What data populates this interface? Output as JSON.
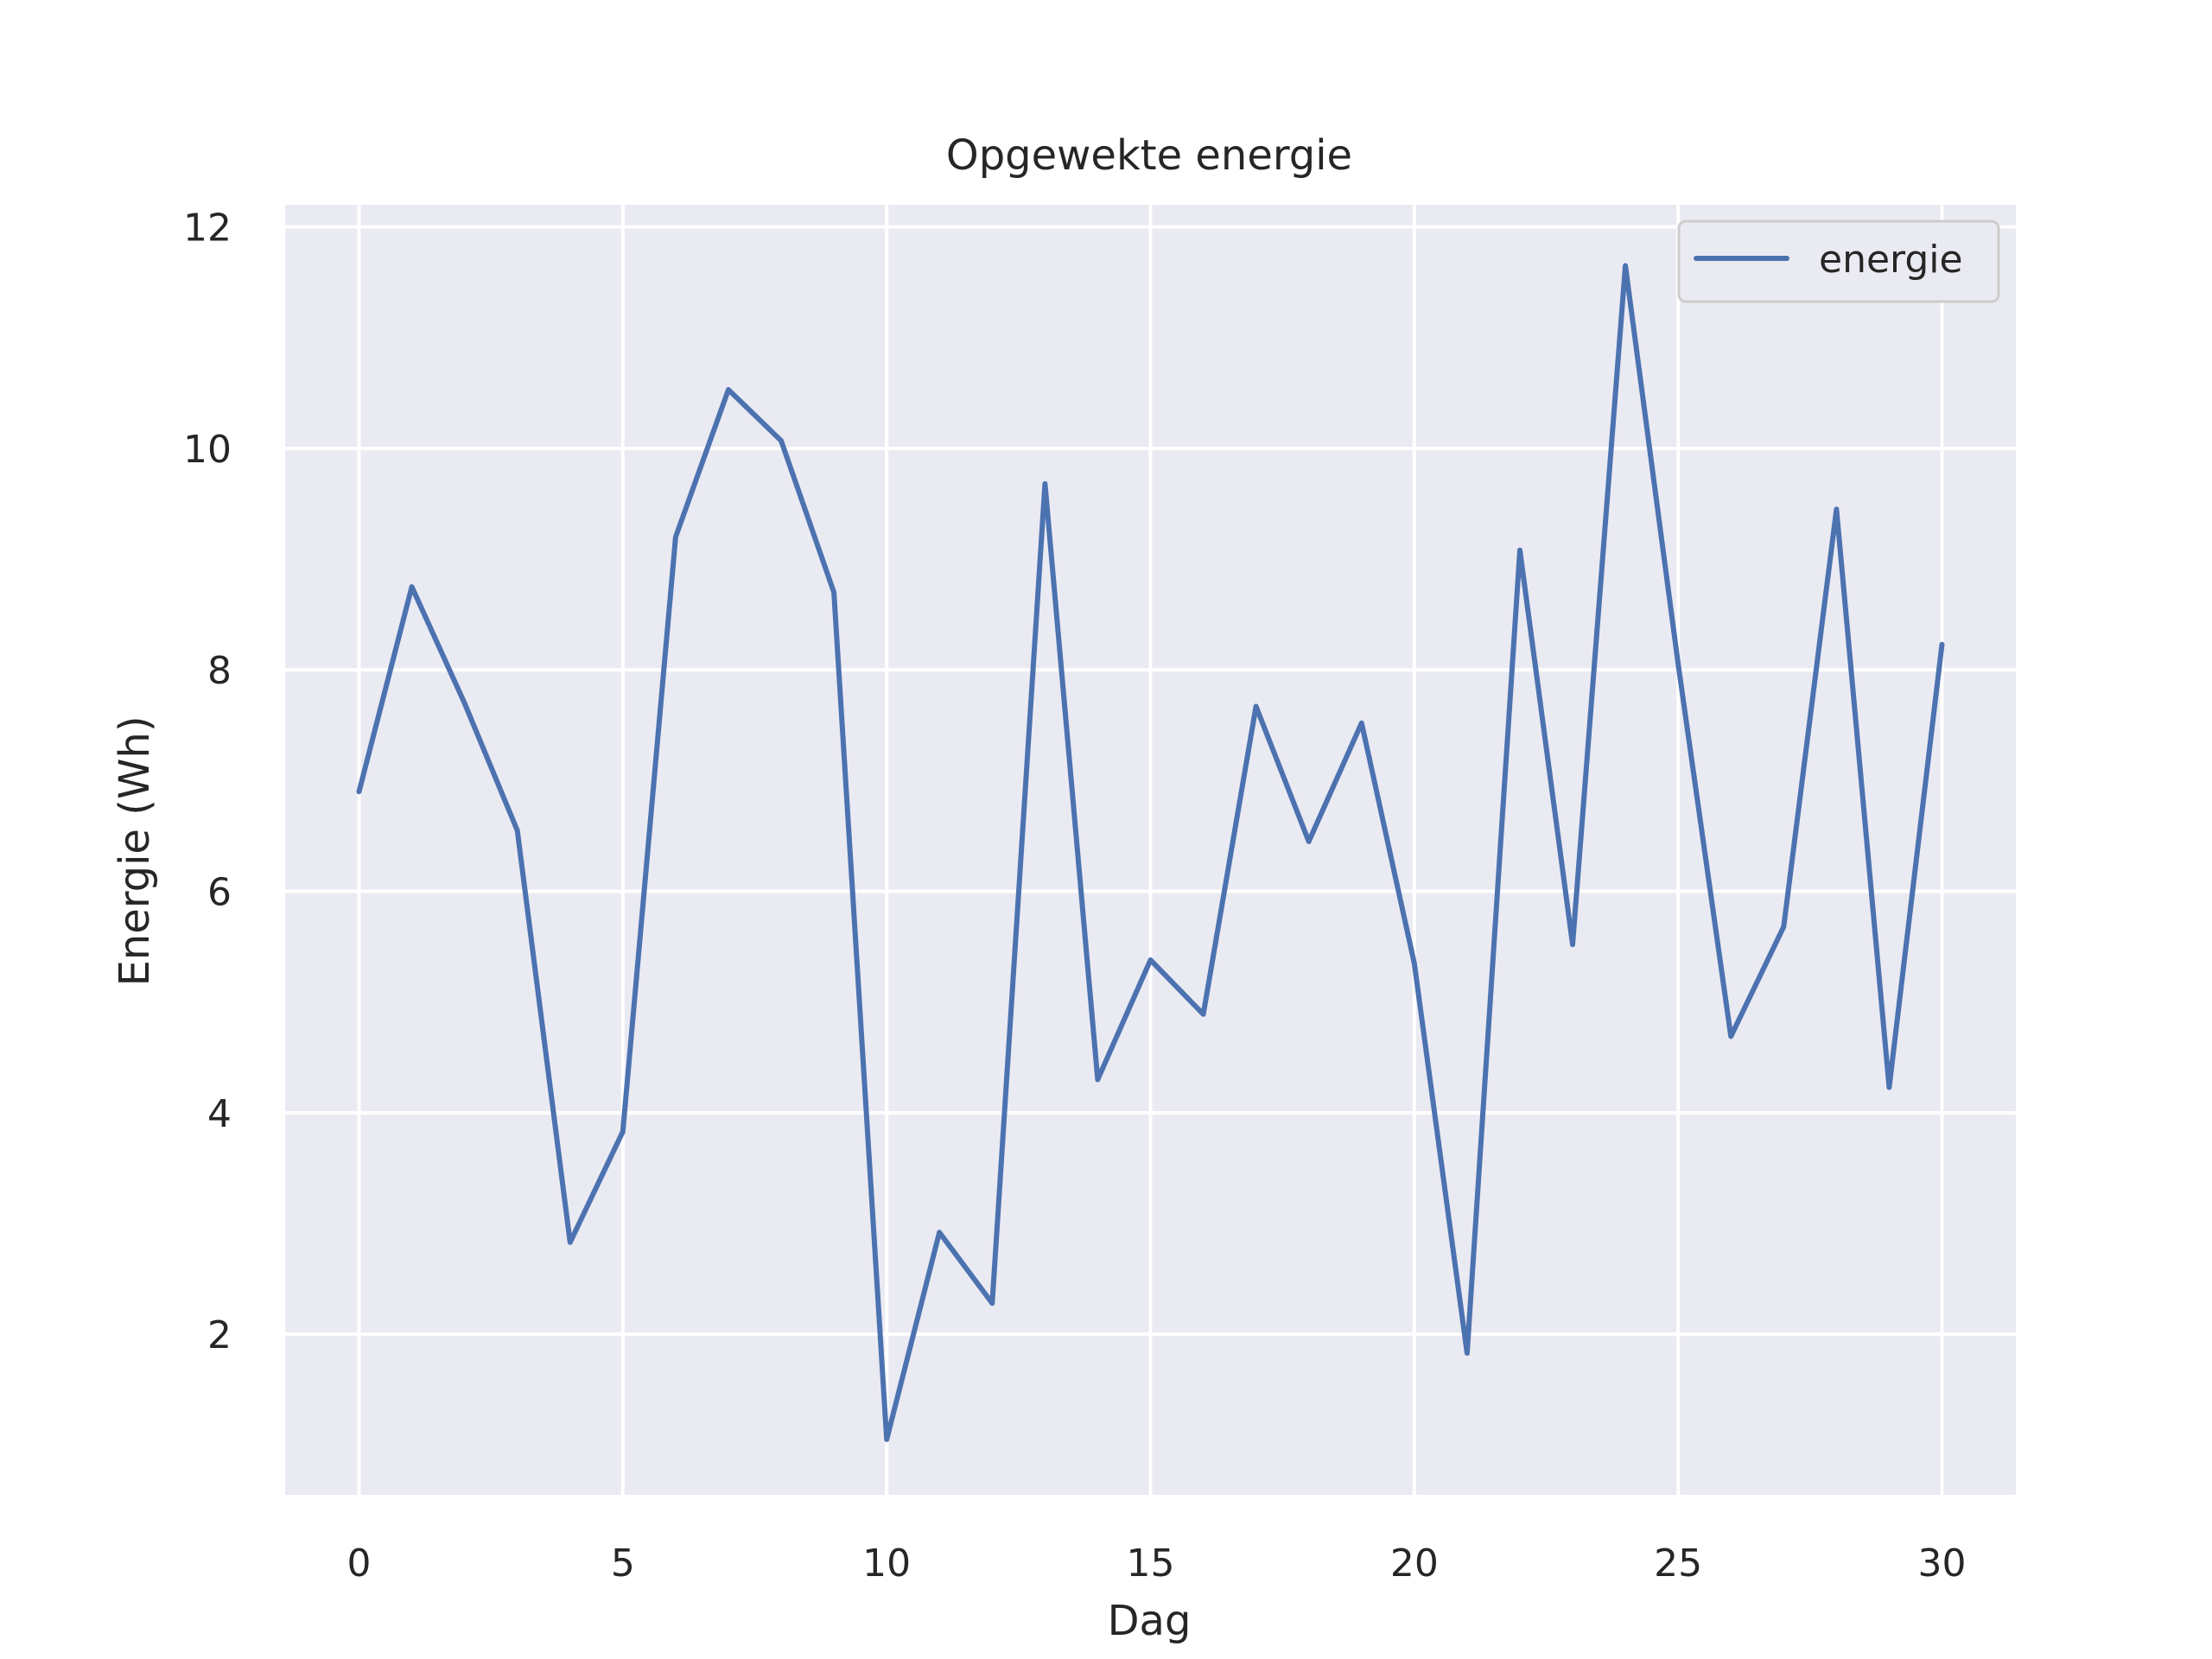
{
  "chart_data": {
    "type": "line",
    "title": "Opgewekte energie",
    "xlabel": "Dag",
    "ylabel": "Energie (Wh)",
    "xlim": [
      -1.4,
      31.4
    ],
    "ylim": [
      0.55,
      12.2
    ],
    "xticks": [
      0,
      5,
      10,
      15,
      20,
      25,
      30
    ],
    "yticks": [
      2,
      4,
      6,
      8,
      10,
      12
    ],
    "grid": true,
    "legend_position": "top-right",
    "background_color": "#eaeaf2",
    "grid_color": "#ffffff",
    "series": [
      {
        "name": "energie",
        "color": "#4c72b0",
        "x": [
          0,
          1,
          2,
          3,
          4,
          5,
          6,
          7,
          8,
          9,
          10,
          11,
          12,
          13,
          14,
          15,
          16,
          17,
          18,
          19,
          20,
          21,
          22,
          23,
          24,
          25,
          26,
          27,
          28,
          29,
          30
        ],
        "y": [
          6.9,
          8.75,
          7.7,
          6.55,
          2.83,
          3.83,
          9.2,
          10.53,
          10.07,
          8.7,
          1.05,
          2.92,
          2.28,
          9.68,
          4.3,
          5.38,
          4.89,
          7.67,
          6.45,
          7.52,
          5.35,
          1.83,
          9.08,
          5.52,
          11.65,
          8.05,
          4.69,
          5.68,
          9.45,
          4.23,
          8.23
        ]
      }
    ]
  }
}
